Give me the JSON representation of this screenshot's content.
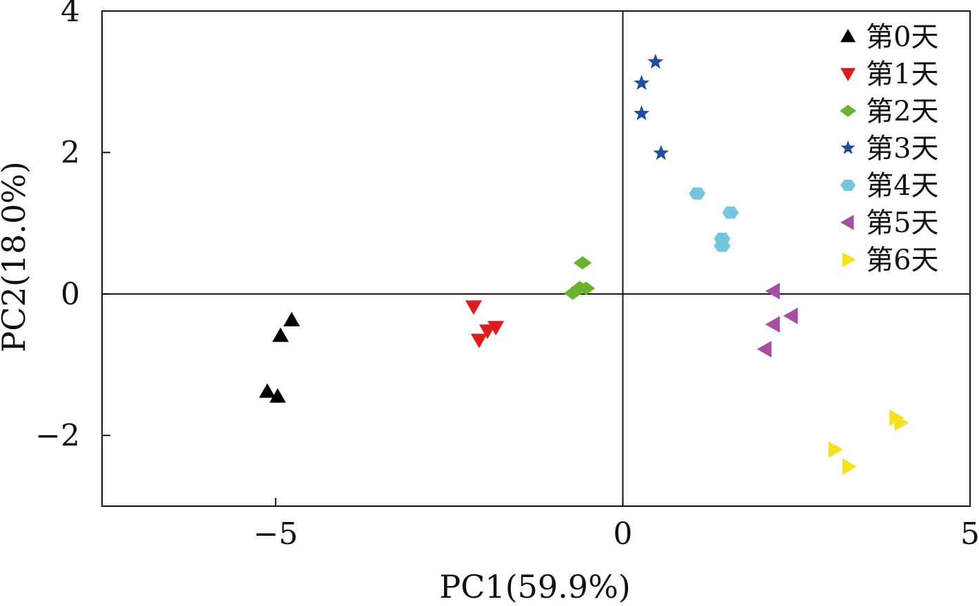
{
  "chart_data": {
    "type": "scatter",
    "xlabel": "PC1(59.9%)",
    "ylabel": "PC2(18.0%)",
    "xlim": [
      -7.5,
      5
    ],
    "ylim": [
      -3,
      4
    ],
    "xticks": [
      {
        "value": -5,
        "label": "−5"
      },
      {
        "value": 0,
        "label": "0"
      },
      {
        "value": 5,
        "label": "5"
      }
    ],
    "yticks": [
      {
        "value": -2,
        "label": "−2"
      },
      {
        "value": 0,
        "label": "0"
      },
      {
        "value": 2,
        "label": "2"
      },
      {
        "value": 4,
        "label": "4"
      }
    ],
    "zero_lines": true,
    "grid": false,
    "legend_position": "top-right",
    "series": [
      {
        "name": "第0天",
        "marker": "triangle-up",
        "color": "#000000",
        "points": [
          [
            -4.77,
            -0.37
          ],
          [
            -4.93,
            -0.59
          ],
          [
            -5.12,
            -1.38
          ],
          [
            -4.97,
            -1.45
          ]
        ]
      },
      {
        "name": "第1天",
        "marker": "triangle-down",
        "color": "#e31a1c",
        "points": [
          [
            -2.15,
            -0.18
          ],
          [
            -2.07,
            -0.65
          ],
          [
            -1.95,
            -0.52
          ],
          [
            -1.83,
            -0.47
          ]
        ]
      },
      {
        "name": "第2天",
        "marker": "diamond",
        "color": "#6ab42d",
        "points": [
          [
            -0.58,
            0.44
          ],
          [
            -0.72,
            0.01
          ],
          [
            -0.62,
            0.09
          ],
          [
            -0.53,
            0.08
          ]
        ]
      },
      {
        "name": "第3天",
        "marker": "star",
        "color": "#1f4ea0",
        "points": [
          [
            0.47,
            3.28
          ],
          [
            0.27,
            2.98
          ],
          [
            0.27,
            2.55
          ],
          [
            0.55,
            1.99
          ]
        ]
      },
      {
        "name": "第4天",
        "marker": "hexagon",
        "color": "#74c6e0",
        "points": [
          [
            1.07,
            1.42
          ],
          [
            1.55,
            1.15
          ],
          [
            1.43,
            0.78
          ],
          [
            1.43,
            0.68
          ]
        ]
      },
      {
        "name": "第5天",
        "marker": "triangle-left",
        "color": "#a64ea2",
        "points": [
          [
            2.17,
            0.04
          ],
          [
            2.43,
            -0.31
          ],
          [
            2.17,
            -0.43
          ],
          [
            2.05,
            -0.78
          ]
        ]
      },
      {
        "name": "第6天",
        "marker": "triangle-right",
        "color": "#f5e21c",
        "points": [
          [
            3.93,
            -1.75
          ],
          [
            4.0,
            -1.82
          ],
          [
            3.05,
            -2.2
          ],
          [
            3.25,
            -2.44
          ]
        ]
      }
    ]
  }
}
